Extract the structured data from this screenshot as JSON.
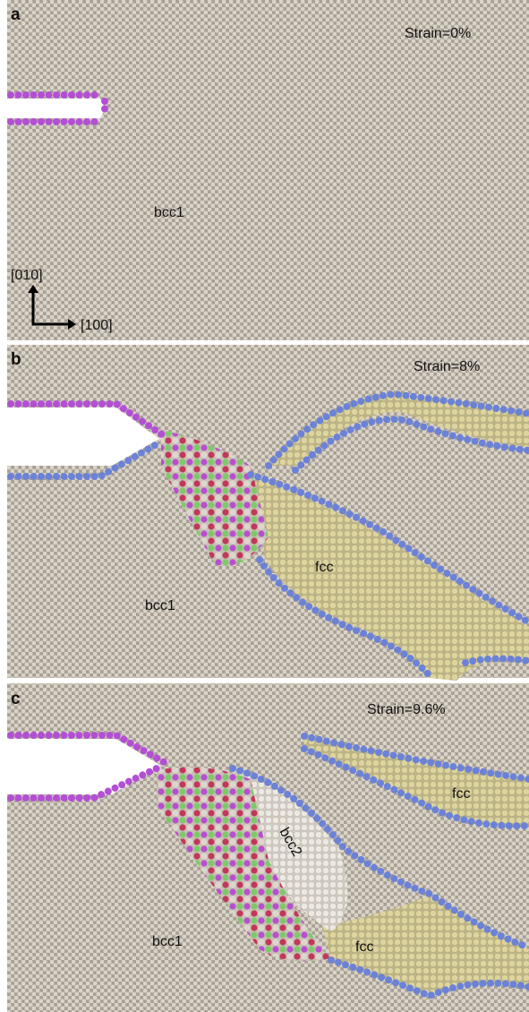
{
  "panels": [
    {
      "label": "a",
      "strain": "Strain=0%",
      "regions": [
        "bcc1"
      ]
    },
    {
      "label": "b",
      "strain": "Strain=8%",
      "regions": [
        "bcc1",
        "fcc"
      ]
    },
    {
      "label": "c",
      "strain": "Strain=9.6%",
      "regions": [
        "bcc1",
        "bcc2",
        "fcc",
        "fcc"
      ]
    }
  ],
  "axes": {
    "y": "[010]",
    "x": "[100]"
  }
}
